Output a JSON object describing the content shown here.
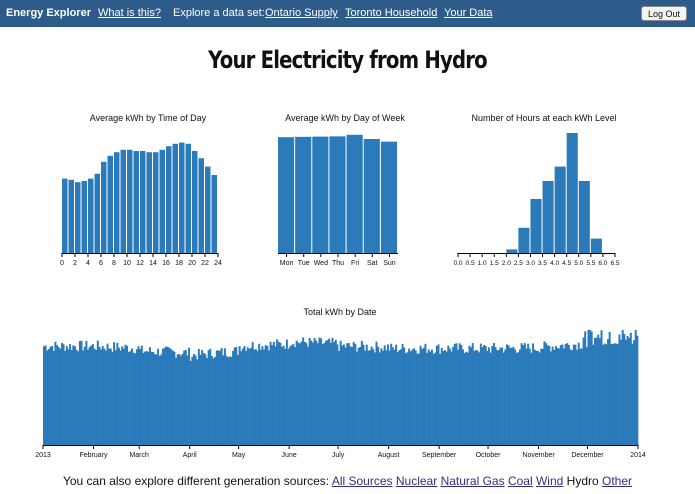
{
  "nav": {
    "brand": "Energy Explorer",
    "what_is_this": "What is this?",
    "explore_label": "Explore a data set:",
    "datasets": [
      "Ontario Supply",
      "Toronto Household",
      "Your Data"
    ],
    "logout": "Log Out"
  },
  "page": {
    "title": "Your Electricity from Hydro"
  },
  "colors": {
    "bar": "#2b7bbb",
    "nav_bg": "#2d5b8a",
    "link_visited": "#3b2a86"
  },
  "chart_data": [
    {
      "type": "bar",
      "title": "Average kWh by Time of Day",
      "x_ticks": [
        "0",
        "2",
        "4",
        "6",
        "8",
        "10",
        "12",
        "14",
        "16",
        "18",
        "20",
        "22",
        "24"
      ],
      "x_domain": [
        0,
        24
      ],
      "values": [
        0.62,
        0.61,
        0.59,
        0.6,
        0.62,
        0.66,
        0.76,
        0.81,
        0.84,
        0.86,
        0.86,
        0.85,
        0.85,
        0.84,
        0.84,
        0.86,
        0.89,
        0.91,
        0.92,
        0.91,
        0.85,
        0.79,
        0.72,
        0.65
      ],
      "ylim": [
        0,
        1
      ]
    },
    {
      "type": "bar",
      "title": "Average kWh by Day of Week",
      "categories": [
        "Mon",
        "Tue",
        "Wed",
        "Thu",
        "Fri",
        "Sat",
        "Sun"
      ],
      "values": [
        0.965,
        0.968,
        0.97,
        0.972,
        0.985,
        0.95,
        0.928
      ],
      "ylim": [
        0,
        1
      ]
    },
    {
      "type": "bar",
      "title": "Number of Hours at each kWh Level",
      "x_ticks": [
        "0.0",
        "0.5",
        "1.0",
        "1.5",
        "2.0",
        "2.5",
        "3.0",
        "3.5",
        "4.0",
        "4.5",
        "5.0",
        "5.5",
        "6.0",
        "6.5"
      ],
      "x_domain": [
        0,
        6.5
      ],
      "bin_width": 0.5,
      "bins": [
        {
          "x0": 2.0,
          "value": 0.03
        },
        {
          "x0": 2.5,
          "value": 0.21
        },
        {
          "x0": 3.0,
          "value": 0.45
        },
        {
          "x0": 3.5,
          "value": 0.6
        },
        {
          "x0": 4.0,
          "value": 0.72
        },
        {
          "x0": 4.5,
          "value": 1.0
        },
        {
          "x0": 5.0,
          "value": 0.6
        },
        {
          "x0": 5.5,
          "value": 0.12
        }
      ],
      "ylim": [
        0,
        1
      ]
    },
    {
      "type": "bar",
      "title": "Total kWh by Date",
      "x_ticks": [
        "2013",
        "February",
        "March",
        "April",
        "May",
        "June",
        "July",
        "August",
        "September",
        "October",
        "November",
        "December",
        "2014"
      ],
      "x_range": [
        "2013-01-01",
        "2014-01-01"
      ],
      "ylim": [
        0,
        1
      ],
      "monthly_level": [
        0.86,
        0.86,
        0.82,
        0.78,
        0.86,
        0.9,
        0.86,
        0.84,
        0.84,
        0.84,
        0.85,
        0.92
      ]
    }
  ],
  "footer": {
    "intro": "You can also explore different generation sources:",
    "sources": [
      {
        "label": "All Sources",
        "current": false
      },
      {
        "label": "Nuclear",
        "current": false
      },
      {
        "label": "Natural Gas",
        "current": false
      },
      {
        "label": "Coal",
        "current": false
      },
      {
        "label": "Wind",
        "current": false
      },
      {
        "label": "Hydro",
        "current": true
      },
      {
        "label": "Other",
        "current": false
      }
    ]
  }
}
